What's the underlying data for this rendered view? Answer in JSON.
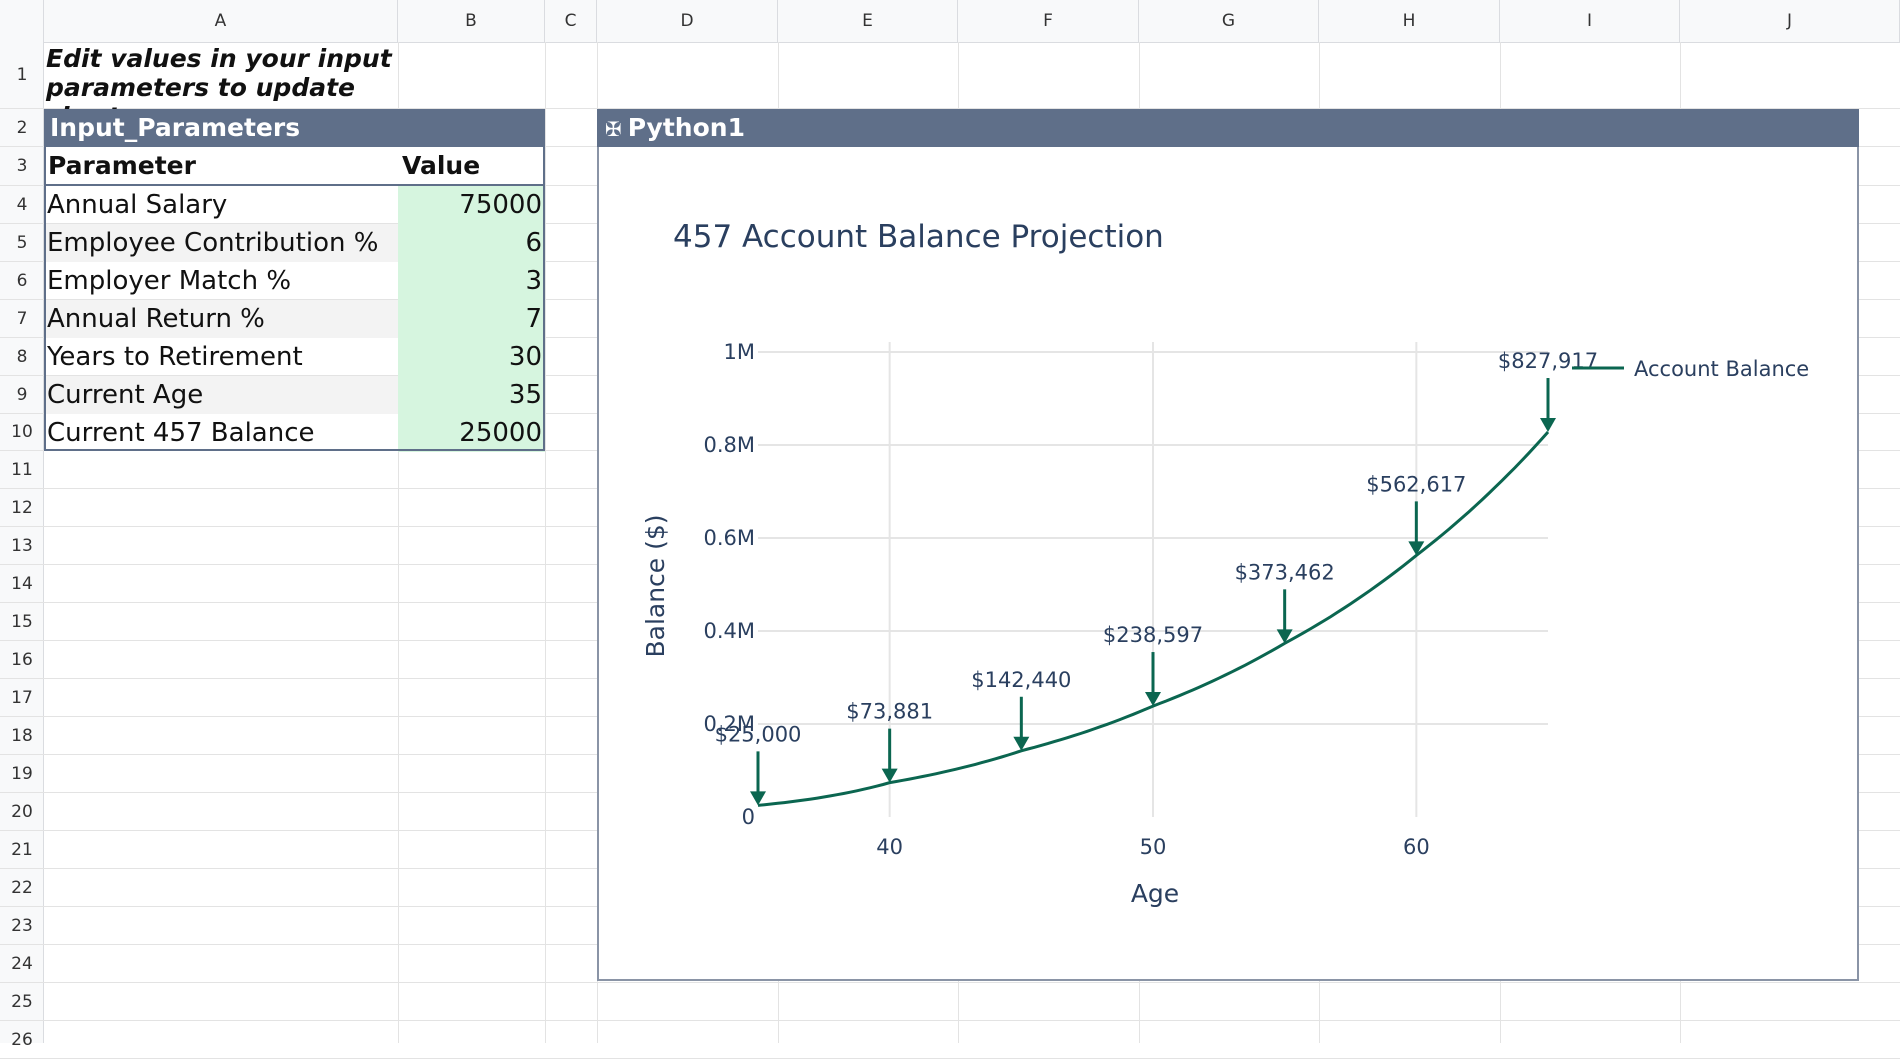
{
  "sheet": {
    "columns": [
      "A",
      "B",
      "C",
      "D",
      "E",
      "F",
      "G",
      "H",
      "I",
      "J"
    ],
    "rows": [
      "1",
      "2",
      "3",
      "4",
      "5",
      "6",
      "7",
      "8",
      "9",
      "10",
      "11",
      "12",
      "13",
      "14",
      "15",
      "16",
      "17",
      "18",
      "19",
      "20",
      "21",
      "22",
      "23",
      "24",
      "25",
      "26"
    ]
  },
  "note": "Edit values in your input parameters to update chart",
  "table": {
    "title": "Input_Parameters",
    "header_param": "Parameter",
    "header_value": "Value",
    "rows": [
      {
        "param": "Annual Salary",
        "value": "75000"
      },
      {
        "param": "Employee Contribution %",
        "value": "6"
      },
      {
        "param": "Employer Match %",
        "value": "3"
      },
      {
        "param": "Annual Return %",
        "value": "7"
      },
      {
        "param": "Years to Retirement",
        "value": "30"
      },
      {
        "param": "Current Age",
        "value": "35"
      },
      {
        "param": "Current 457 Balance",
        "value": "25000"
      }
    ]
  },
  "python_object": {
    "title": "Python1",
    "icon": "python-icon"
  },
  "colors": {
    "header_fill": "#5f6f89",
    "value_fill": "#d6f5df",
    "line": "#0b6650",
    "text": "#2a3f5f"
  },
  "chart_data": {
    "type": "line",
    "title": "457 Account Balance Projection",
    "xlabel": "Age",
    "ylabel": "Balance ($)",
    "xlim": [
      35,
      65
    ],
    "ylim": [
      0,
      1000000
    ],
    "x_ticks": [
      "40",
      "50",
      "60"
    ],
    "x_tick_values": [
      40,
      50,
      60
    ],
    "y_ticks": [
      "0",
      "0.2M",
      "0.4M",
      "0.6M",
      "0.8M",
      "1M"
    ],
    "y_tick_values": [
      0,
      200000,
      400000,
      600000,
      800000,
      1000000
    ],
    "grid": true,
    "legend_position": "top-right",
    "series": [
      {
        "name": "Account Balance",
        "x": [
          35,
          36,
          37,
          38,
          39,
          40,
          41,
          42,
          43,
          44,
          45,
          46,
          47,
          48,
          49,
          50,
          51,
          52,
          53,
          54,
          55,
          56,
          57,
          58,
          59,
          60,
          61,
          62,
          63,
          64,
          65
        ],
        "y": [
          25000,
          33550,
          42699,
          52488,
          62963,
          73881,
          85559,
          98054,
          111424,
          125730,
          142440,
          156892,
          173726,
          191738,
          211011,
          238597,
          254387,
          278715,
          304747,
          332601,
          373462,
          363000,
          397000,
          433000,
          472000,
          562617,
          598000,
          650000,
          706000,
          765000,
          827917
        ]
      }
    ],
    "annotations": [
      {
        "x": 35,
        "y": 25000,
        "text": "$25,000"
      },
      {
        "x": 40,
        "y": 73881,
        "text": "$73,881"
      },
      {
        "x": 45,
        "y": 142440,
        "text": "$142,440"
      },
      {
        "x": 50,
        "y": 238597,
        "text": "$238,597"
      },
      {
        "x": 55,
        "y": 373462,
        "text": "$373,462"
      },
      {
        "x": 60,
        "y": 562617,
        "text": "$562,617"
      },
      {
        "x": 65,
        "y": 827917,
        "text": "$827,917"
      }
    ]
  }
}
